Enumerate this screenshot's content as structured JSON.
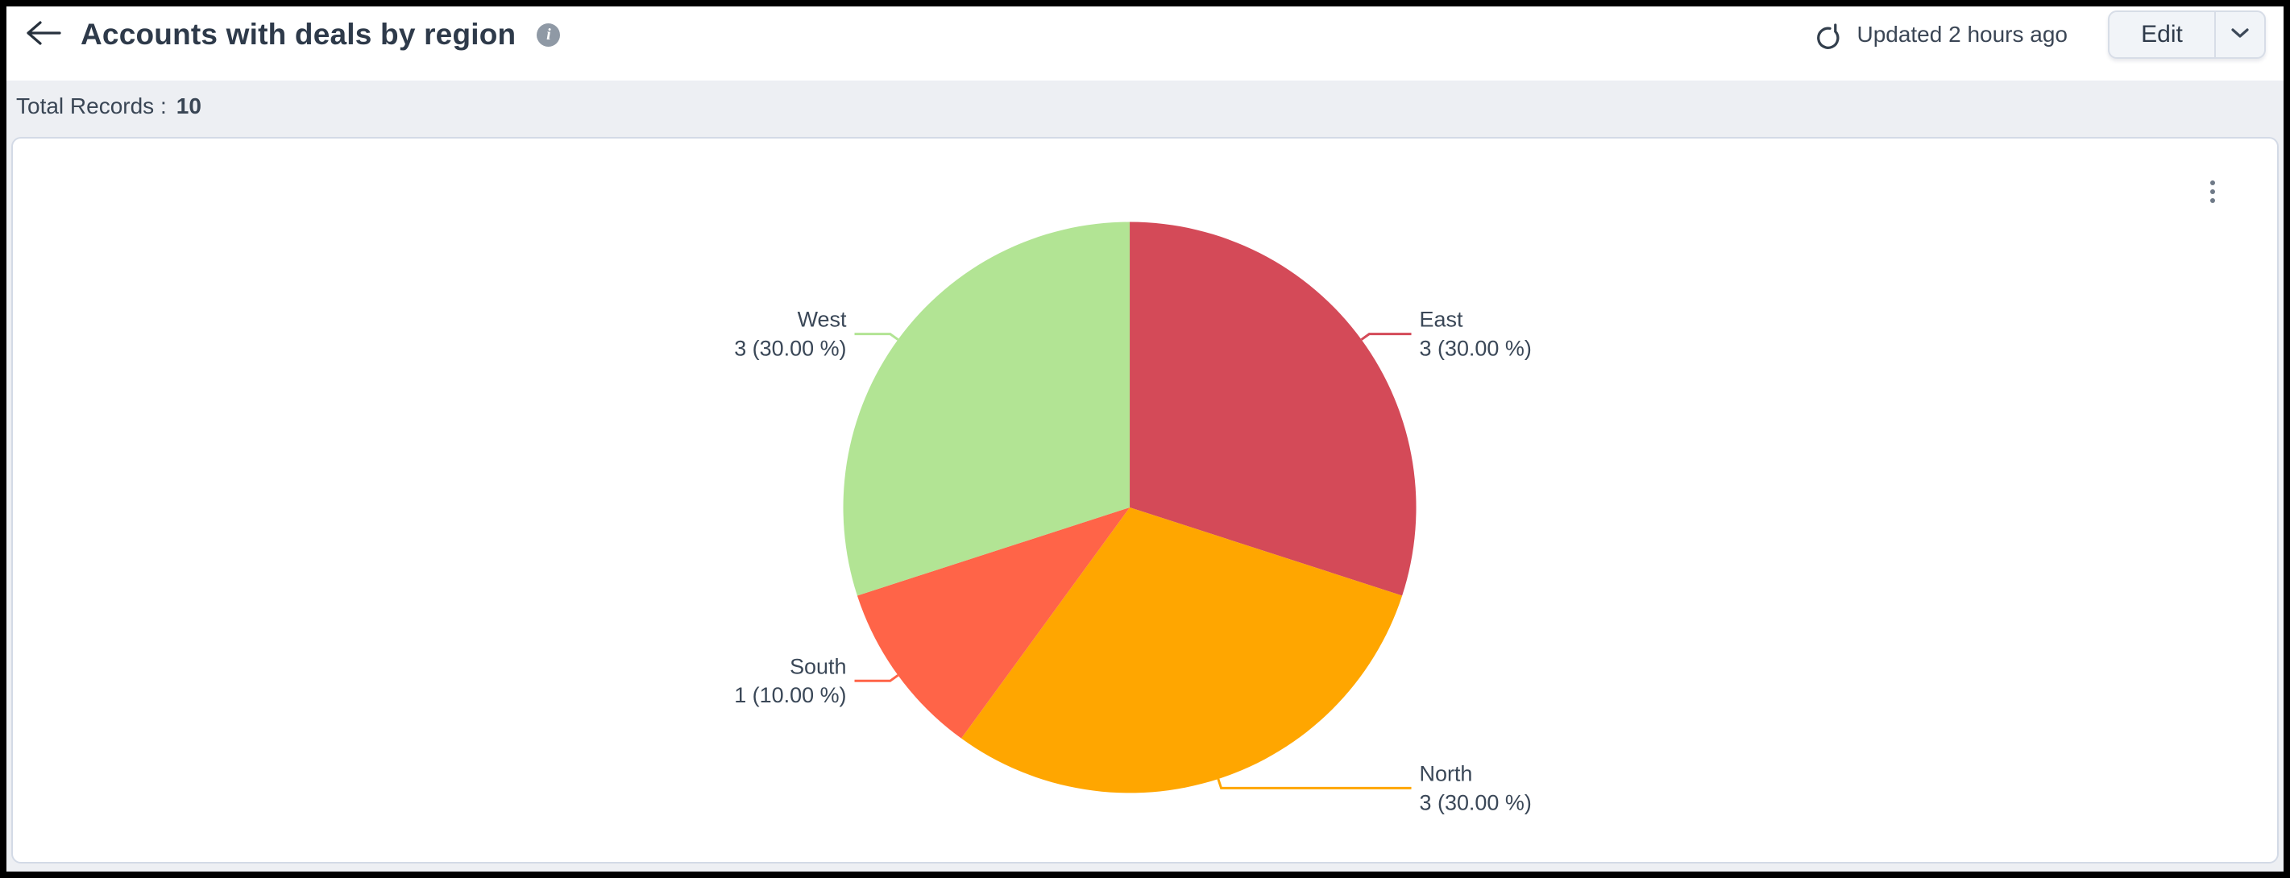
{
  "header": {
    "title": "Accounts with deals by region",
    "info_glyph": "i",
    "updated_text": "Updated 2 hours ago",
    "edit_button_label": "Edit",
    "icons": {
      "back": "arrow-left",
      "info": "info-circle",
      "refresh": "refresh-circular-arrow",
      "edit_dropdown": "chevron-down"
    }
  },
  "summary": {
    "total_records_label": "Total Records :",
    "total_records_value": "10"
  },
  "chart": {
    "menu_icon": "kebab-vertical-dots"
  },
  "chart_data": {
    "type": "pie",
    "title": "Accounts with deals by region",
    "total_records": 10,
    "start_angle_deg": -90,
    "direction": "clockwise",
    "legend": "none",
    "label_format": "name on first line, 'value (percent %)' on second line, colored leader lines",
    "categories": [
      "East",
      "North",
      "South",
      "West"
    ],
    "values": [
      3,
      3,
      1,
      3
    ],
    "slices": [
      {
        "label": "East",
        "value": 3,
        "percent": 30.0,
        "display": "3 (30.00 %)",
        "color": "#d44a58",
        "label_side": "right"
      },
      {
        "label": "North",
        "value": 3,
        "percent": 30.0,
        "display": "3 (30.00 %)",
        "color": "#ffa600",
        "label_side": "right"
      },
      {
        "label": "South",
        "value": 1,
        "percent": 10.0,
        "display": "1 (10.00 %)",
        "color": "#ff6448",
        "label_side": "left"
      },
      {
        "label": "West",
        "value": 3,
        "percent": 30.0,
        "display": "3 (30.00 %)",
        "color": "#b2e494",
        "label_side": "left"
      }
    ]
  },
  "colors": {
    "slice_east": "#d44a58",
    "slice_north": "#ffa600",
    "slice_south": "#ff6448",
    "slice_west": "#b2e494",
    "bar_background": "#edeff3",
    "card_border": "#d3dae6",
    "text_dark": "#3a4757",
    "icon_gray": "#8f99a5"
  }
}
